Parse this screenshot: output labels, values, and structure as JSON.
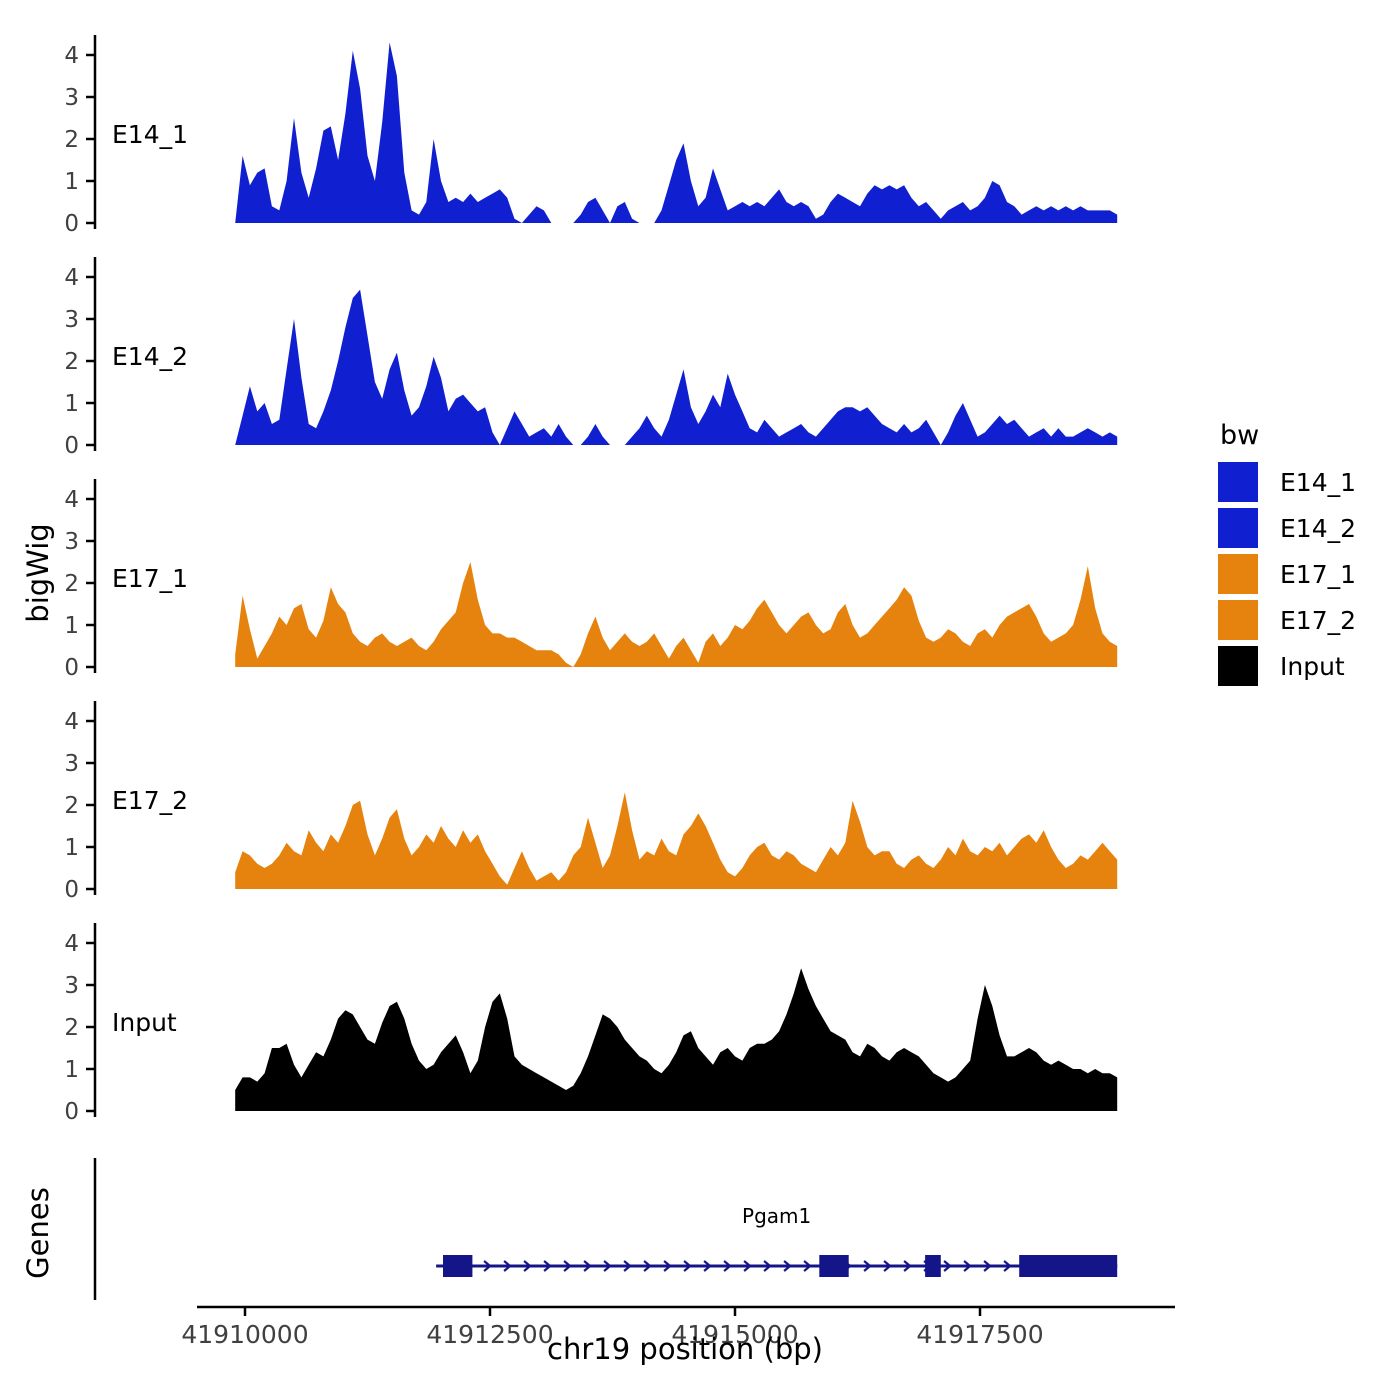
{
  "figure": {
    "ylabel": "bigWig",
    "genes_panel_label": "Genes",
    "xlabel": "chr19 position (bp)",
    "legend": {
      "title": "bw",
      "entries": [
        {
          "label": "E14_1",
          "color": "#1020D0"
        },
        {
          "label": "E14_2",
          "color": "#1020D0"
        },
        {
          "label": "E17_1",
          "color": "#E6830E"
        },
        {
          "label": "E17_2",
          "color": "#E6830E"
        },
        {
          "label": "Input",
          "color": "#000000"
        }
      ]
    }
  },
  "chart_data": {
    "type": "area",
    "title": "",
    "xlabel": "chr19 position (bp)",
    "ylabel": "bigWig",
    "x_start": 41909900,
    "x_step": 75,
    "x_ticks": [
      41910000,
      41912500,
      41915000,
      41917500
    ],
    "y_ticks": [
      0,
      1,
      2,
      3,
      4
    ],
    "ylim": [
      0,
      4.5
    ],
    "grid": false,
    "legend_position": "right",
    "tracks": [
      {
        "name": "E14_1",
        "color": "#1020D0",
        "values": [
          0,
          1.6,
          0.9,
          1.2,
          1.3,
          0.4,
          0.3,
          1.0,
          2.5,
          1.2,
          0.6,
          1.3,
          2.2,
          2.3,
          1.5,
          2.6,
          4.1,
          3.2,
          1.6,
          1.0,
          2.4,
          4.3,
          3.5,
          1.2,
          0.3,
          0.2,
          0.5,
          2.0,
          1.0,
          0.5,
          0.6,
          0.5,
          0.7,
          0.5,
          0.6,
          0.7,
          0.8,
          0.6,
          0.1,
          0,
          0.2,
          0.4,
          0.3,
          0,
          0,
          0,
          0,
          0.2,
          0.5,
          0.6,
          0.3,
          0,
          0.4,
          0.5,
          0.1,
          0,
          0,
          0,
          0.3,
          0.9,
          1.5,
          1.9,
          1.0,
          0.4,
          0.6,
          1.3,
          0.8,
          0.3,
          0.4,
          0.5,
          0.4,
          0.5,
          0.4,
          0.6,
          0.8,
          0.5,
          0.4,
          0.5,
          0.4,
          0.1,
          0.2,
          0.5,
          0.7,
          0.6,
          0.5,
          0.4,
          0.7,
          0.9,
          0.8,
          0.9,
          0.8,
          0.9,
          0.6,
          0.4,
          0.5,
          0.3,
          0.1,
          0.3,
          0.4,
          0.5,
          0.3,
          0.4,
          0.6,
          1.0,
          0.9,
          0.5,
          0.4,
          0.2,
          0.3,
          0.4,
          0.3,
          0.4,
          0.3,
          0.4,
          0.3,
          0.4,
          0.3,
          0.3,
          0.3,
          0.3,
          0.2
        ]
      },
      {
        "name": "E14_2",
        "color": "#1020D0",
        "values": [
          0,
          0.7,
          1.4,
          0.8,
          1.0,
          0.5,
          0.6,
          1.8,
          3.0,
          1.6,
          0.5,
          0.4,
          0.8,
          1.3,
          2.0,
          2.8,
          3.5,
          3.7,
          2.6,
          1.5,
          1.1,
          1.8,
          2.2,
          1.3,
          0.7,
          0.9,
          1.4,
          2.1,
          1.6,
          0.8,
          1.1,
          1.2,
          1.0,
          0.8,
          0.9,
          0.3,
          0,
          0.4,
          0.8,
          0.5,
          0.2,
          0.3,
          0.4,
          0.2,
          0.5,
          0.2,
          0,
          0,
          0.2,
          0.5,
          0.2,
          0,
          0,
          0,
          0.2,
          0.4,
          0.7,
          0.4,
          0.2,
          0.6,
          1.2,
          1.8,
          0.9,
          0.5,
          0.8,
          1.2,
          0.9,
          1.7,
          1.2,
          0.8,
          0.4,
          0.3,
          0.6,
          0.4,
          0.2,
          0.3,
          0.4,
          0.5,
          0.3,
          0.2,
          0.4,
          0.6,
          0.8,
          0.9,
          0.9,
          0.8,
          0.9,
          0.7,
          0.5,
          0.4,
          0.3,
          0.5,
          0.3,
          0.4,
          0.6,
          0.3,
          0,
          0.3,
          0.7,
          1.0,
          0.6,
          0.2,
          0.3,
          0.5,
          0.7,
          0.5,
          0.6,
          0.4,
          0.2,
          0.3,
          0.4,
          0.2,
          0.4,
          0.2,
          0.2,
          0.3,
          0.4,
          0.3,
          0.2,
          0.3,
          0.2
        ]
      },
      {
        "name": "E17_1",
        "color": "#E6830E",
        "values": [
          0.3,
          1.7,
          0.9,
          0.2,
          0.5,
          0.8,
          1.2,
          1.0,
          1.4,
          1.5,
          0.9,
          0.7,
          1.1,
          1.9,
          1.5,
          1.3,
          0.8,
          0.6,
          0.5,
          0.7,
          0.8,
          0.6,
          0.5,
          0.6,
          0.7,
          0.5,
          0.4,
          0.6,
          0.9,
          1.1,
          1.3,
          2.0,
          2.5,
          1.6,
          1.0,
          0.8,
          0.8,
          0.7,
          0.7,
          0.6,
          0.5,
          0.4,
          0.4,
          0.4,
          0.3,
          0.1,
          0,
          0.3,
          0.8,
          1.2,
          0.7,
          0.4,
          0.6,
          0.8,
          0.6,
          0.5,
          0.6,
          0.8,
          0.5,
          0.2,
          0.5,
          0.7,
          0.4,
          0.1,
          0.6,
          0.8,
          0.5,
          0.7,
          1.0,
          0.9,
          1.1,
          1.4,
          1.6,
          1.3,
          1.0,
          0.8,
          1.0,
          1.2,
          1.3,
          1.0,
          0.8,
          0.9,
          1.3,
          1.5,
          1.0,
          0.7,
          0.8,
          1.0,
          1.2,
          1.4,
          1.6,
          1.9,
          1.7,
          1.1,
          0.7,
          0.6,
          0.7,
          0.9,
          0.8,
          0.6,
          0.5,
          0.8,
          0.9,
          0.7,
          1.0,
          1.2,
          1.3,
          1.4,
          1.5,
          1.2,
          0.8,
          0.6,
          0.7,
          0.8,
          1.0,
          1.6,
          2.4,
          1.4,
          0.8,
          0.6,
          0.5
        ]
      },
      {
        "name": "E17_2",
        "color": "#E6830E",
        "values": [
          0.4,
          0.9,
          0.8,
          0.6,
          0.5,
          0.6,
          0.8,
          1.1,
          0.9,
          0.8,
          1.4,
          1.1,
          0.9,
          1.3,
          1.1,
          1.5,
          2.0,
          2.1,
          1.3,
          0.8,
          1.2,
          1.7,
          1.9,
          1.2,
          0.8,
          1.0,
          1.3,
          1.1,
          1.5,
          1.2,
          1.0,
          1.4,
          1.1,
          1.3,
          0.9,
          0.6,
          0.3,
          0.1,
          0.5,
          0.9,
          0.5,
          0.2,
          0.3,
          0.4,
          0.2,
          0.4,
          0.8,
          1.0,
          1.7,
          1.1,
          0.5,
          0.8,
          1.5,
          2.3,
          1.4,
          0.7,
          0.9,
          0.8,
          1.2,
          0.9,
          0.8,
          1.3,
          1.5,
          1.8,
          1.5,
          1.1,
          0.7,
          0.4,
          0.3,
          0.5,
          0.8,
          1.0,
          1.1,
          0.8,
          0.7,
          0.9,
          0.8,
          0.6,
          0.5,
          0.4,
          0.7,
          1.0,
          0.8,
          1.1,
          2.1,
          1.6,
          1.0,
          0.8,
          0.9,
          0.9,
          0.6,
          0.5,
          0.7,
          0.8,
          0.6,
          0.5,
          0.7,
          1.0,
          0.8,
          1.2,
          0.9,
          0.8,
          1.0,
          0.9,
          1.1,
          0.8,
          1.0,
          1.2,
          1.3,
          1.1,
          1.4,
          1.0,
          0.7,
          0.5,
          0.6,
          0.8,
          0.7,
          0.9,
          1.1,
          0.9,
          0.7
        ]
      },
      {
        "name": "Input",
        "color": "#000000",
        "values": [
          0.5,
          0.8,
          0.8,
          0.7,
          0.9,
          1.5,
          1.5,
          1.6,
          1.1,
          0.8,
          1.1,
          1.4,
          1.3,
          1.7,
          2.2,
          2.4,
          2.3,
          2.0,
          1.7,
          1.6,
          2.1,
          2.5,
          2.6,
          2.2,
          1.6,
          1.2,
          1.0,
          1.1,
          1.4,
          1.6,
          1.8,
          1.4,
          0.9,
          1.2,
          2.0,
          2.6,
          2.8,
          2.2,
          1.3,
          1.1,
          1.0,
          0.9,
          0.8,
          0.7,
          0.6,
          0.5,
          0.6,
          0.9,
          1.3,
          1.8,
          2.3,
          2.2,
          2.0,
          1.7,
          1.5,
          1.3,
          1.2,
          1.0,
          0.9,
          1.1,
          1.4,
          1.8,
          1.9,
          1.5,
          1.3,
          1.1,
          1.4,
          1.5,
          1.3,
          1.2,
          1.5,
          1.6,
          1.6,
          1.7,
          1.9,
          2.3,
          2.8,
          3.4,
          2.9,
          2.5,
          2.2,
          1.9,
          1.8,
          1.7,
          1.4,
          1.3,
          1.6,
          1.5,
          1.3,
          1.2,
          1.4,
          1.5,
          1.4,
          1.3,
          1.1,
          0.9,
          0.8,
          0.7,
          0.8,
          1.0,
          1.2,
          2.2,
          3.0,
          2.5,
          1.8,
          1.3,
          1.3,
          1.4,
          1.5,
          1.4,
          1.2,
          1.1,
          1.2,
          1.1,
          1.0,
          1.0,
          0.9,
          1.0,
          0.9,
          0.9,
          0.8
        ]
      }
    ],
    "gene": {
      "name": "Pgam1",
      "chrom": "chr19",
      "start": 41911950,
      "end": 41918900,
      "strand": "+",
      "color": "#15158A",
      "exons": [
        [
          41912020,
          41912320
        ],
        [
          41915860,
          41916160
        ],
        [
          41916940,
          41917100
        ],
        [
          41917900,
          41918900
        ]
      ]
    }
  }
}
